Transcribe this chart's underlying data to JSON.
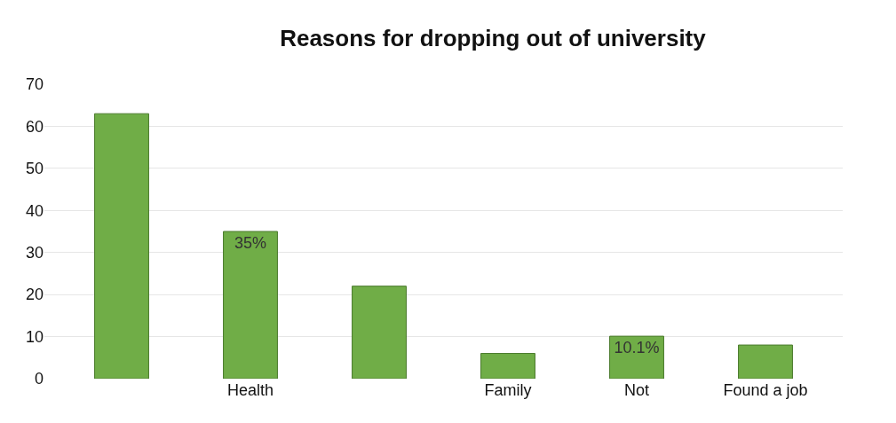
{
  "chart_data": {
    "type": "bar",
    "title": "Reasons for dropping out of university",
    "categories": [
      null,
      "Health",
      null,
      "Family",
      "Not",
      "Found a job"
    ],
    "values": [
      63,
      35,
      22,
      6,
      10.1,
      8
    ],
    "value_labels": [
      null,
      "35%",
      null,
      null,
      "10.1%",
      null
    ],
    "color": "#70ad47",
    "ylim": [
      0,
      70
    ],
    "yticks": [
      0,
      10,
      20,
      30,
      40,
      50,
      60,
      70
    ],
    "grid": "y",
    "legend": false
  }
}
